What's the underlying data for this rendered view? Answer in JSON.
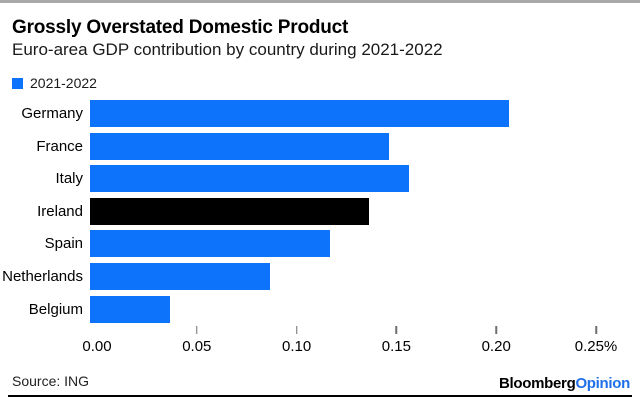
{
  "header": {
    "title": "Grossly Overstated Domestic Product",
    "subtitle": "Euro-area GDP contribution by country during 2021-2022"
  },
  "legend": {
    "label": "2021-2022",
    "swatch_color": "#0d73fb"
  },
  "chart_data": {
    "type": "bar",
    "orientation": "horizontal",
    "categories": [
      "Germany",
      "France",
      "Italy",
      "Ireland",
      "Spain",
      "Netherlands",
      "Belgium"
    ],
    "values": [
      0.21,
      0.15,
      0.16,
      0.14,
      0.12,
      0.09,
      0.04
    ],
    "unit": "%",
    "bar_colors": [
      "#0d73fb",
      "#0d73fb",
      "#0d73fb",
      "#000000",
      "#0d73fb",
      "#0d73fb",
      "#0d73fb"
    ],
    "highlighted_category": "Ireland",
    "title": "Grossly Overstated Domestic Product",
    "subtitle": "Euro-area GDP contribution by country during 2021-2022",
    "xlabel": "",
    "ylabel": "",
    "xlim": [
      0,
      0.25
    ],
    "x_tick_labels": [
      "0.00",
      "0.05",
      "0.10",
      "0.15",
      "0.20",
      "0.25%"
    ],
    "x_ticks_at": [
      0.05,
      0.1,
      0.15,
      0.2,
      0.25
    ],
    "legend_entries": [
      "2021-2022"
    ],
    "legend_position": "top-left",
    "grid": false
  },
  "footer": {
    "source": "Source: ING",
    "logo": {
      "brand": "Bloomberg",
      "sub_brand": "Opinion",
      "sub_brand_color": "#1f6fe8"
    }
  },
  "colors": {
    "bar_blue": "#0d73fb",
    "highlight_black": "#000000",
    "top_strip_gray": "#a9a9a9",
    "axis_tick_gray": "#6f6f6f"
  }
}
